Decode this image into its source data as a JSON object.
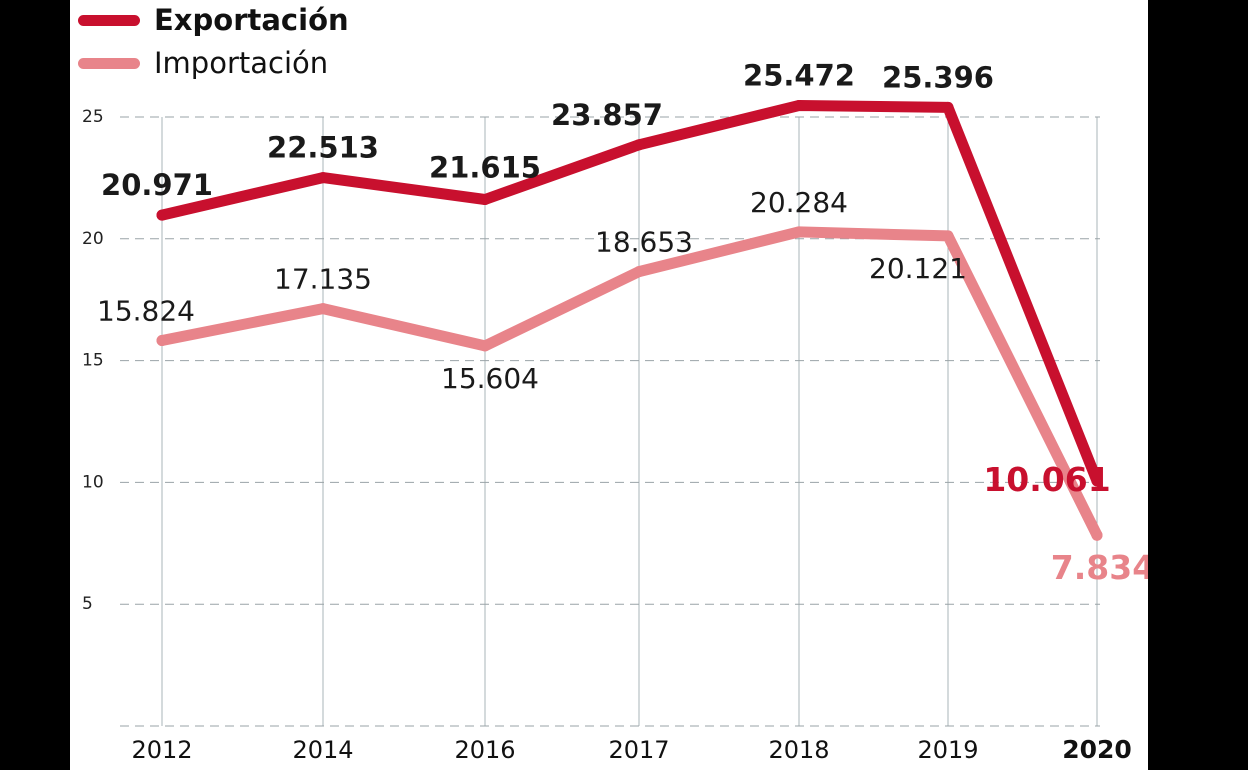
{
  "chart_data": {
    "type": "line",
    "title": "",
    "xlabel": "",
    "ylabel": "",
    "categories": [
      "2012",
      "2014",
      "2016",
      "2017",
      "2018",
      "2019",
      "2020"
    ],
    "highlight_category": "2020",
    "y_ticks": [
      5,
      10,
      15,
      20,
      25
    ],
    "ylim": [
      0,
      25
    ],
    "grid": true,
    "legend_position": "top-left",
    "series": [
      {
        "name": "Exportación",
        "color": "#c8102e",
        "values": [
          20.971,
          22.513,
          21.615,
          23.857,
          25.472,
          25.396,
          10.061
        ],
        "labels": [
          "20.971",
          "22.513",
          "21.615",
          "23.857",
          "25.472",
          "25.396",
          "10.061"
        ]
      },
      {
        "name": "Importación",
        "color": "#e8848a",
        "values": [
          15.824,
          17.135,
          15.604,
          18.653,
          20.284,
          20.121,
          7.834
        ],
        "labels": [
          "15.824",
          "17.135",
          "15.604",
          "18.653",
          "20.284",
          "20.121",
          "7.834"
        ]
      }
    ]
  }
}
